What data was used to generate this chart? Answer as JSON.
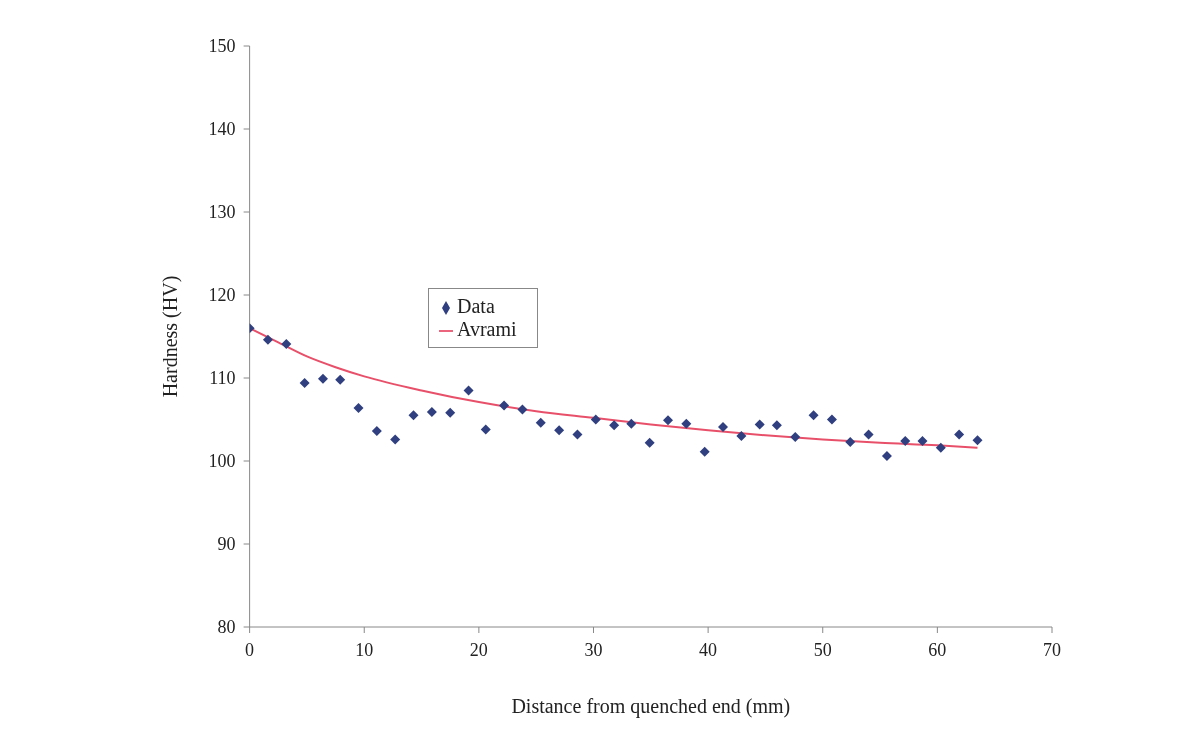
{
  "chart_data": {
    "type": "scatter",
    "xlabel": "Distance from quenched end (mm)",
    "ylabel": "Hardness (HV)",
    "xlim": [
      0,
      70
    ],
    "xticks": [
      0,
      10,
      20,
      30,
      40,
      50,
      60,
      70
    ],
    "ylim": [
      80,
      150
    ],
    "yticks": [
      80,
      90,
      100,
      110,
      120,
      130,
      140,
      150
    ],
    "grid": false,
    "legend": "left",
    "series": [
      {
        "name": "Data",
        "marker": "diamond",
        "color": "#2f3f7f",
        "x": [
          0,
          1.6,
          3.2,
          4.8,
          6.4,
          7.9,
          9.5,
          11.1,
          12.7,
          14.3,
          15.9,
          17.5,
          19.1,
          20.6,
          22.2,
          23.8,
          25.4,
          27.0,
          28.6,
          30.2,
          31.8,
          33.3,
          34.9,
          36.5,
          38.1,
          39.7,
          41.3,
          42.9,
          44.5,
          46.0,
          47.6,
          49.2,
          50.8,
          52.4,
          54.0,
          55.6,
          57.2,
          58.7,
          60.3,
          61.9,
          63.5
        ],
        "values": [
          116,
          114.6,
          114.1,
          109.4,
          109.9,
          109.8,
          106.4,
          103.6,
          102.6,
          105.5,
          105.9,
          105.8,
          108.5,
          103.8,
          106.7,
          106.2,
          104.6,
          103.7,
          103.2,
          105.0,
          104.3,
          104.5,
          102.2,
          104.9,
          104.5,
          101.1,
          104.1,
          103.0,
          104.4,
          104.3,
          102.9,
          105.5,
          105.0,
          102.3,
          103.2,
          100.6,
          102.4,
          102.4,
          101.6,
          103.2,
          102.5
        ]
      },
      {
        "name": "Avrami",
        "type": "line",
        "marker": "none",
        "line_style": "solid",
        "color": "#e8506a",
        "x": [
          0,
          2.5,
          5,
          7.5,
          10,
          15,
          20,
          25,
          30,
          35,
          40,
          45,
          50,
          55,
          60,
          63.5
        ],
        "values": [
          116,
          114.3,
          112.6,
          111.3,
          110.2,
          108.5,
          107.1,
          106.0,
          105.2,
          104.4,
          103.7,
          103.1,
          102.6,
          102.2,
          101.9,
          101.6
        ]
      }
    ]
  }
}
